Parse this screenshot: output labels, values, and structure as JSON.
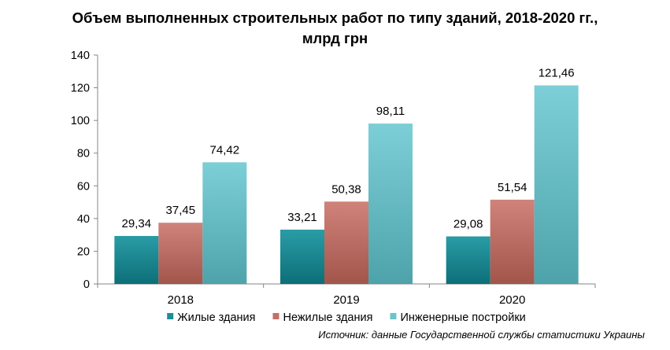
{
  "chart_data": {
    "type": "bar",
    "title": "Объем выполненных строительных работ по типу зданий, 2018-2020 гг., млрд грн",
    "title_lines": [
      "Объем выполненных строительных работ по типу зданий, 2018-2020 гг.,",
      "млрд грн"
    ],
    "categories": [
      "2018",
      "2019",
      "2020"
    ],
    "series": [
      {
        "name": "Жилые здания",
        "values": [
          29.34,
          33.21,
          29.08
        ],
        "labels": [
          "29,34",
          "33,21",
          "29,08"
        ],
        "color": "#1f8d96"
      },
      {
        "name": "Нежилые здания",
        "values": [
          37.45,
          50.38,
          51.54
        ],
        "labels": [
          "37,45",
          "50,38",
          "51,54"
        ],
        "color": "#c27066"
      },
      {
        "name": "Инженерные постройки",
        "values": [
          74.42,
          98.11,
          121.46
        ],
        "labels": [
          "74,42",
          "98,11",
          "121,46"
        ],
        "color": "#6cc3cb"
      }
    ],
    "ylim": [
      0,
      140
    ],
    "yticks": [
      0,
      20,
      40,
      60,
      80,
      100,
      120,
      140
    ],
    "xlabel": "",
    "ylabel": "",
    "grid": false,
    "legend_position": "bottom"
  },
  "source": "Источник: данные Государственной службы статистики Украины"
}
